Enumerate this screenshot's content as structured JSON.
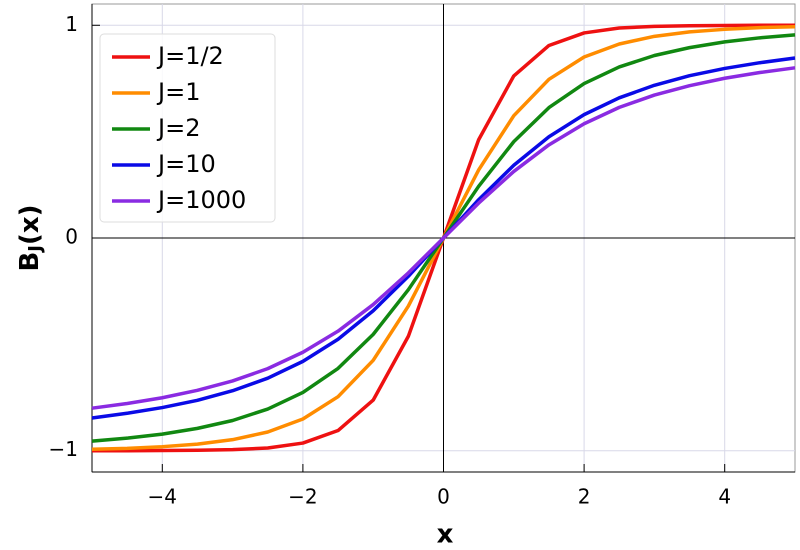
{
  "chart_data": {
    "type": "line",
    "xlabel": "x",
    "ylabel": {
      "base": "B",
      "subscript": "J",
      "rest": "(x)"
    },
    "x": [
      -5,
      -4.5,
      -4,
      -3.5,
      -3,
      -2.5,
      -2,
      -1.5,
      -1,
      -0.5,
      0,
      0.5,
      1,
      1.5,
      2,
      2.5,
      3,
      3.5,
      4,
      4.5,
      5
    ],
    "series": [
      {
        "name": "J=1/2",
        "color": "#ee1111",
        "values": [
          -1.0,
          -1.0,
          -0.999,
          -0.998,
          -0.995,
          -0.987,
          -0.964,
          -0.905,
          -0.762,
          -0.462,
          0,
          0.462,
          0.762,
          0.905,
          0.964,
          0.987,
          0.995,
          0.998,
          0.999,
          1.0,
          1.0
        ]
      },
      {
        "name": "J=1",
        "color": "#ff8c00",
        "values": [
          -0.993,
          -0.989,
          -0.981,
          -0.969,
          -0.948,
          -0.912,
          -0.851,
          -0.746,
          -0.575,
          -0.32,
          0,
          0.32,
          0.575,
          0.746,
          0.851,
          0.912,
          0.948,
          0.969,
          0.981,
          0.989,
          0.993
        ]
      },
      {
        "name": "J=2",
        "color": "#118811",
        "values": [
          -0.955,
          -0.941,
          -0.922,
          -0.895,
          -0.858,
          -0.804,
          -0.726,
          -0.613,
          -0.453,
          -0.243,
          0,
          0.243,
          0.453,
          0.613,
          0.726,
          0.804,
          0.858,
          0.895,
          0.922,
          0.941,
          0.955
        ]
      },
      {
        "name": "J=10",
        "color": "#0a0ae6",
        "values": [
          -0.846,
          -0.824,
          -0.797,
          -0.763,
          -0.718,
          -0.659,
          -0.58,
          -0.476,
          -0.342,
          -0.18,
          0,
          0.18,
          0.342,
          0.476,
          0.58,
          0.659,
          0.718,
          0.763,
          0.797,
          0.824,
          0.846
        ]
      },
      {
        "name": "J=1000",
        "color": "#8a2be2",
        "values": [
          -0.8,
          -0.778,
          -0.751,
          -0.716,
          -0.672,
          -0.614,
          -0.537,
          -0.438,
          -0.313,
          -0.164,
          0,
          0.164,
          0.313,
          0.438,
          0.537,
          0.614,
          0.672,
          0.716,
          0.751,
          0.778,
          0.8
        ]
      }
    ],
    "xlim": [
      -5,
      5
    ],
    "ylim": [
      -1.1,
      1.1
    ],
    "xticks": [
      {
        "value": -4,
        "label": "−4"
      },
      {
        "value": -2,
        "label": "−2"
      },
      0,
      2,
      4
    ],
    "yticks": [
      {
        "value": -1,
        "label": "−1"
      },
      0,
      1
    ],
    "grid": true,
    "legend": "upper-left"
  }
}
